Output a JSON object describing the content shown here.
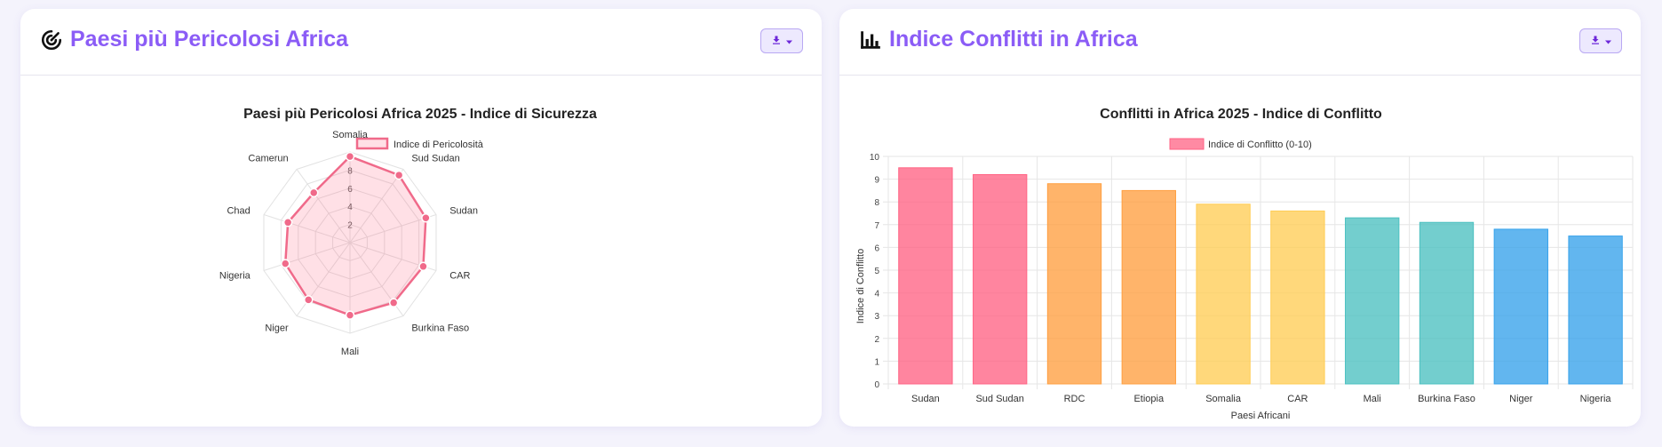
{
  "left_card": {
    "title": "Paesi più Pericolosi Africa",
    "title_icon": "radar-icon",
    "download_icon": "download-icon",
    "dropdown_icon": "chevron-down-icon"
  },
  "right_card": {
    "title": "Indice Conflitti in Africa",
    "title_icon": "bar-chart-icon",
    "download_icon": "download-icon",
    "dropdown_icon": "chevron-down-icon"
  },
  "colors": {
    "accent": "#8b5cf6",
    "radar_line": "#f06a8a",
    "radar_fill": "rgba(255,99,132,0.2)"
  },
  "chart_data": [
    {
      "type": "radar",
      "title": "Paesi più Pericolosi Africa 2025 - Indice di Sicurezza",
      "legend": "Indice di Pericolosità",
      "categories": [
        "Somalia",
        "Sud Sudan",
        "Sudan",
        "CAR",
        "Burkina Faso",
        "Mali",
        "Niger",
        "Nigeria",
        "Chad",
        "Camerun"
      ],
      "values": [
        9.5,
        9.2,
        8.8,
        8.5,
        8.2,
        8.0,
        7.8,
        7.5,
        7.2,
        6.8
      ],
      "r_ticks": [
        "2",
        "4",
        "6",
        "8"
      ],
      "r_max": 10
    },
    {
      "type": "bar",
      "title": "Conflitti in Africa 2025 - Indice di Conflitto",
      "legend": "Indice di Conflitto (0-10)",
      "categories": [
        "Sudan",
        "Sud Sudan",
        "RDC",
        "Etiopia",
        "Somalia",
        "CAR",
        "Mali",
        "Burkina Faso",
        "Niger",
        "Nigeria"
      ],
      "values": [
        9.5,
        9.2,
        8.8,
        8.5,
        7.9,
        7.6,
        7.3,
        7.1,
        6.8,
        6.5
      ],
      "colors": [
        "#ff6384",
        "#ff6384",
        "#ff9f40",
        "#ff9f40",
        "#ffcd56",
        "#ffcd56",
        "#4bc0c0",
        "#4bc0c0",
        "#36a2eb",
        "#36a2eb"
      ],
      "xlabel": "Paesi Africani",
      "ylabel": "Indice di Conflitto",
      "y_ticks": [
        "0",
        "1",
        "2",
        "3",
        "4",
        "5",
        "6",
        "7",
        "8",
        "9",
        "10"
      ],
      "ylim": [
        0,
        10
      ]
    }
  ]
}
